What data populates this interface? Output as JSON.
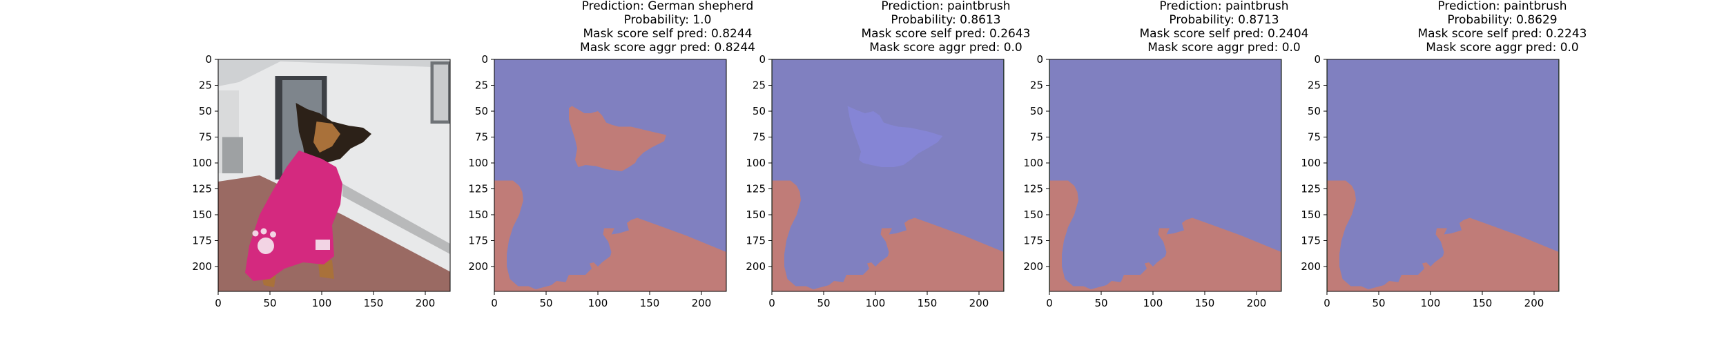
{
  "figure": {
    "panels": [
      {
        "kind": "photo",
        "title_lines": [],
        "photo_description_colors": {
          "sky_wall": "#e8e9ea",
          "floor": "#9a6a63",
          "towel": "#d4297f",
          "dog_dark": "#2c2118",
          "dog_tan": "#a9713a"
        }
      },
      {
        "kind": "mask",
        "title_lines": [
          "Prediction: German shepherd",
          "Probability: 1.0",
          "Mask score self pred: 0.8244",
          "Mask score aggr pred: 0.8244"
        ],
        "head_region": "red"
      },
      {
        "kind": "mask",
        "title_lines": [
          "Prediction: paintbrush",
          "Probability: 0.8613",
          "Mask score self pred: 0.2643",
          "Mask score aggr pred: 0.0"
        ],
        "head_region": "faint-blue"
      },
      {
        "kind": "mask",
        "title_lines": [
          "Prediction: paintbrush",
          "Probability: 0.8713",
          "Mask score self pred: 0.2404",
          "Mask score aggr pred: 0.0"
        ],
        "head_region": "none"
      },
      {
        "kind": "mask",
        "title_lines": [
          "Prediction: paintbrush",
          "Probability: 0.8629",
          "Mask score self pred: 0.2243",
          "Mask score aggr pred: 0.0"
        ],
        "head_region": "none"
      }
    ]
  },
  "chart_data": {
    "type": "heatmap",
    "x_ticks": [
      0,
      50,
      100,
      150,
      200
    ],
    "y_ticks": [
      0,
      25,
      50,
      75,
      100,
      125,
      150,
      175,
      200
    ],
    "xlim": [
      0,
      224
    ],
    "ylim": [
      224,
      0
    ],
    "colors": {
      "mask_blue": "#8080c0",
      "mask_red": "#c07c78",
      "head_faint": "#8585d5",
      "green_edge": "#4c8a4c"
    },
    "grid": false
  }
}
